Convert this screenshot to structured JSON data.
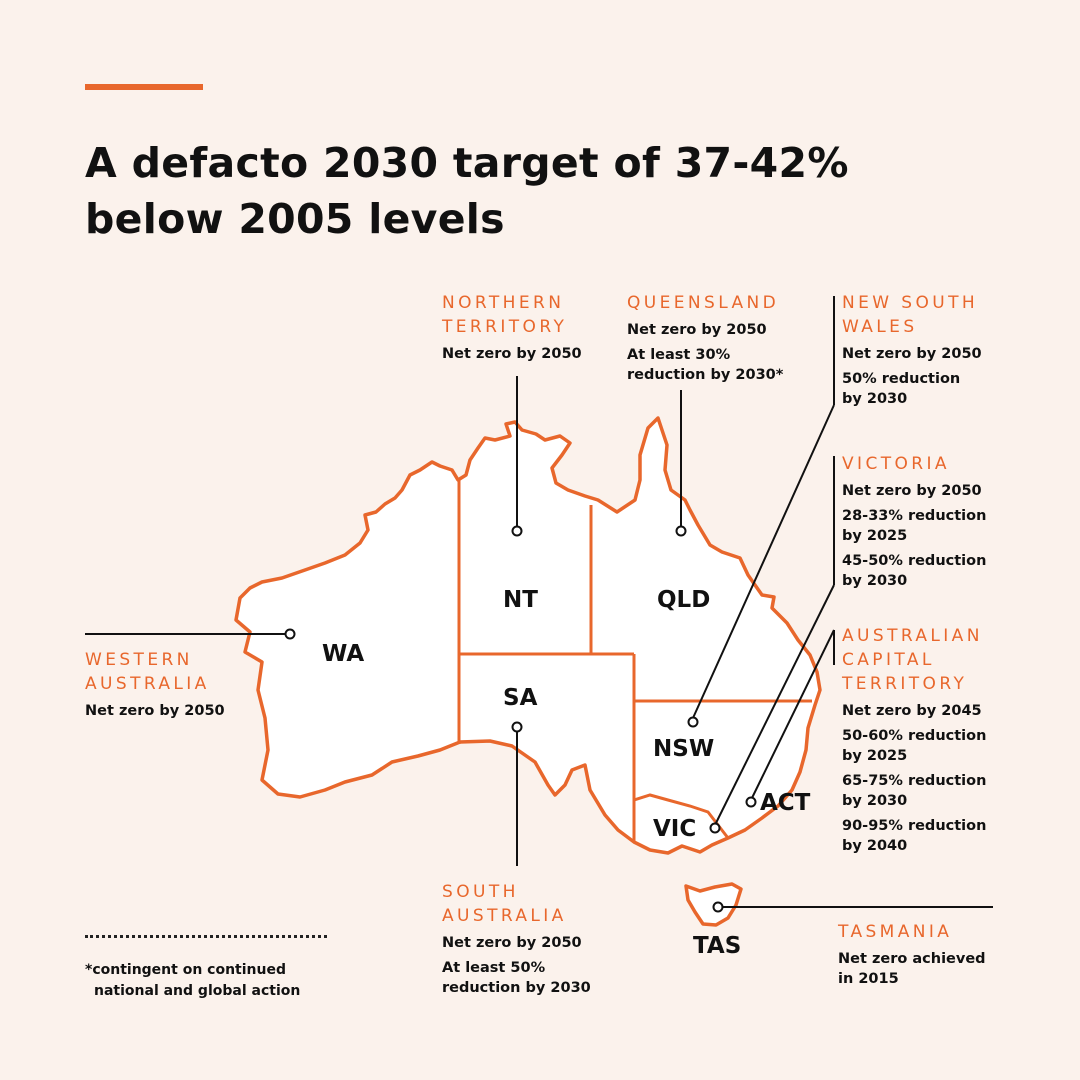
{
  "title_lines": [
    "A defacto 2030 target of 37-42%",
    "below 2005 levels"
  ],
  "colors": {
    "accent": "#e8672c",
    "background": "#fbf2ec",
    "land": "#ffffff",
    "text": "#111111"
  },
  "regions": {
    "wa": {
      "abbr": "WA",
      "name_lines": [
        "WESTERN",
        "AUSTRALIA"
      ],
      "facts": [
        "Net zero by 2050"
      ]
    },
    "nt": {
      "abbr": "NT",
      "name_lines": [
        "NORTHERN",
        "TERRITORY"
      ],
      "facts": [
        "Net zero by 2050"
      ]
    },
    "qld": {
      "abbr": "QLD",
      "name_lines": [
        "QUEENSLAND"
      ],
      "facts": [
        "Net zero by 2050",
        "At least 30%\nreduction by 2030*"
      ]
    },
    "nsw": {
      "abbr": "NSW",
      "name_lines": [
        "NEW SOUTH",
        "WALES"
      ],
      "facts": [
        "Net zero by 2050",
        "50% reduction\nby 2030"
      ]
    },
    "vic": {
      "abbr": "VIC",
      "name_lines": [
        "VICTORIA"
      ],
      "facts": [
        "Net zero by 2050",
        "28-33% reduction\nby 2025",
        "45-50% reduction\nby 2030"
      ]
    },
    "act": {
      "abbr": "ACT",
      "name_lines": [
        "AUSTRALIAN",
        "CAPITAL",
        "TERRITORY"
      ],
      "facts": [
        "Net zero by 2045",
        "50-60% reduction\nby 2025",
        "65-75% reduction\nby 2030",
        "90-95% reduction\nby 2040"
      ]
    },
    "sa": {
      "abbr": "SA",
      "name_lines": [
        "SOUTH",
        "AUSTRALIA"
      ],
      "facts": [
        "Net zero by 2050",
        "At least 50%\nreduction by 2030"
      ]
    },
    "tas": {
      "abbr": "TAS",
      "name_lines": [
        "TASMANIA"
      ],
      "facts": [
        "Net zero achieved\nin 2015"
      ]
    }
  },
  "footnote_lines": [
    "*contingent on continued",
    "national and global action"
  ]
}
